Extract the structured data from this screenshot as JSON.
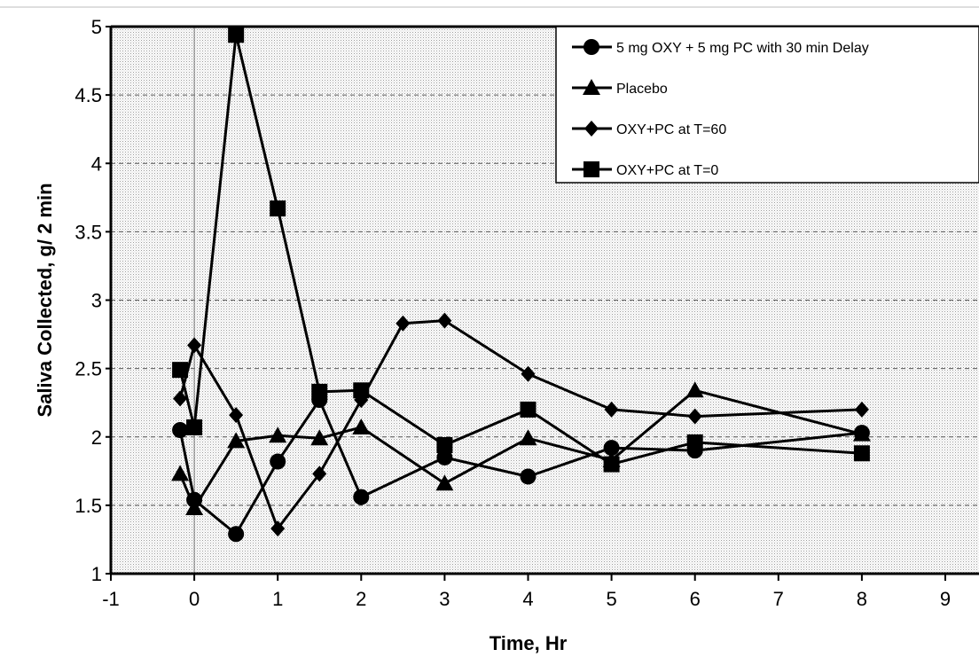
{
  "chart_data": {
    "type": "line",
    "title": "",
    "xlabel": "Time, Hr",
    "ylabel": "Saliva Collected, g/ 2 min",
    "xlim": [
      -1,
      9
    ],
    "ylim": [
      1,
      5
    ],
    "xticks": [
      -1,
      0,
      1,
      2,
      3,
      4,
      5,
      6,
      7,
      8,
      9
    ],
    "yticks": [
      1,
      1.5,
      2,
      2.5,
      3,
      3.5,
      4,
      4.5,
      5
    ],
    "grid": "horizontal dashed",
    "plot_background": "light gray stipple",
    "legend_position": "top-right",
    "series": [
      {
        "name": "5 mg OXY + 5 mg PC with 30 min Delay",
        "marker": "circle",
        "color": "#000000",
        "x": [
          -0.17,
          0,
          0.5,
          1,
          1.5,
          2,
          3,
          4,
          5,
          6,
          8
        ],
        "y": [
          2.05,
          1.54,
          1.29,
          1.82,
          2.27,
          1.56,
          1.85,
          1.71,
          1.92,
          1.9,
          2.03
        ]
      },
      {
        "name": "Placebo",
        "marker": "triangle",
        "color": "#000000",
        "x": [
          -0.17,
          0,
          0.5,
          1,
          1.5,
          2,
          3,
          4,
          5,
          6,
          8
        ],
        "y": [
          1.73,
          1.48,
          1.97,
          2.01,
          1.99,
          2.07,
          1.66,
          1.99,
          1.83,
          2.34,
          2.02
        ]
      },
      {
        "name": "OXY+PC at T=60",
        "marker": "diamond",
        "color": "#000000",
        "x": [
          -0.17,
          0,
          0.5,
          1,
          1.5,
          2,
          2.5,
          3,
          4,
          5,
          6,
          8
        ],
        "y": [
          2.28,
          2.67,
          2.16,
          1.33,
          1.73,
          2.27,
          2.83,
          2.85,
          2.46,
          2.2,
          2.15,
          2.2
        ]
      },
      {
        "name": "OXY+PC at T=0",
        "marker": "square",
        "color": "#000000",
        "x": [
          -0.17,
          0,
          0.5,
          1,
          1.5,
          2,
          3,
          4,
          5,
          6,
          8
        ],
        "y": [
          2.49,
          2.07,
          4.94,
          3.67,
          2.33,
          2.34,
          1.94,
          2.2,
          1.8,
          1.96,
          1.88
        ]
      }
    ]
  }
}
